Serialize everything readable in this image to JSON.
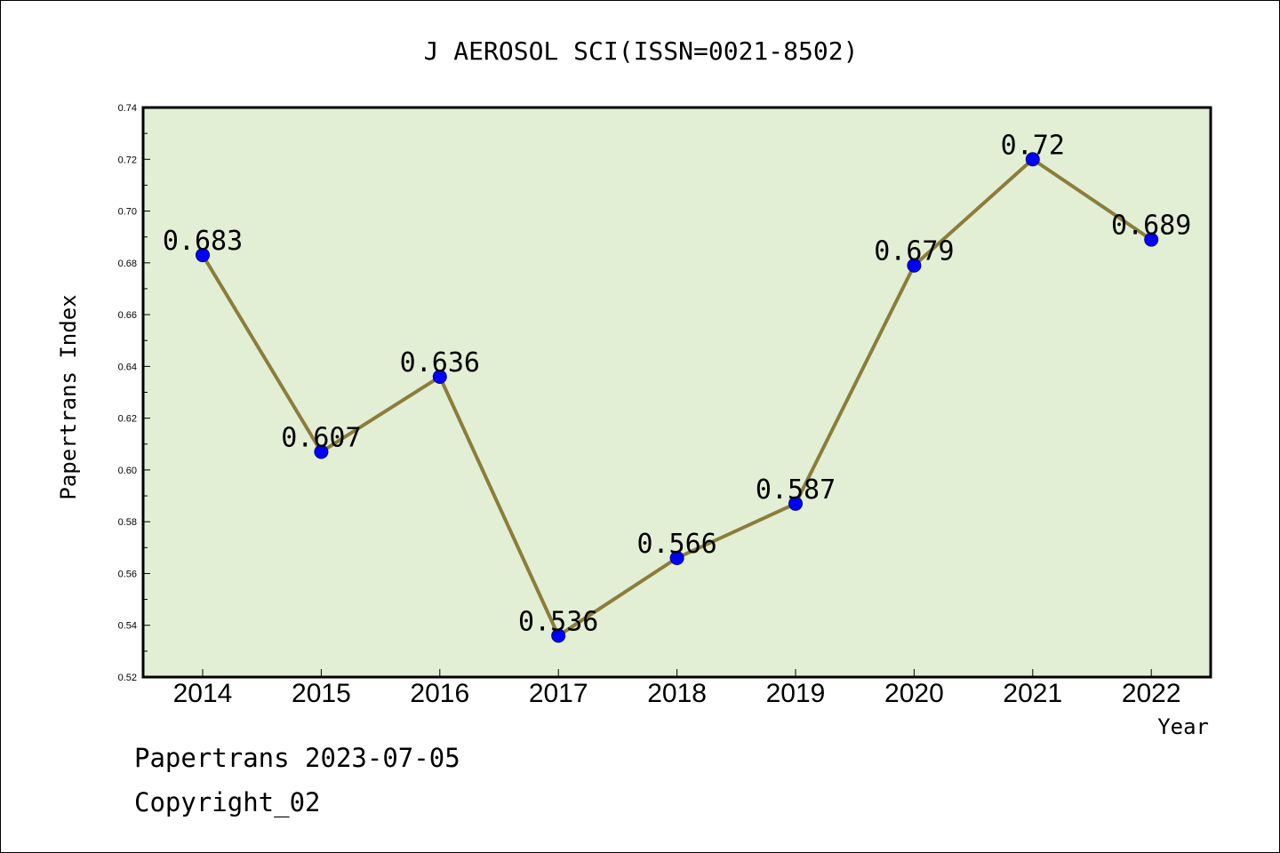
{
  "colors": {
    "plot_background": "#e2efd5",
    "line": "#8b7d3a",
    "marker": "#0000ff"
  },
  "chart_data": {
    "type": "line",
    "title": "J AEROSOL SCI(ISSN=0021-8502)",
    "xlabel": "Year",
    "ylabel": "Papertrans Index",
    "categories": [
      "2014",
      "2015",
      "2016",
      "2017",
      "2018",
      "2019",
      "2020",
      "2021",
      "2022"
    ],
    "values": [
      0.683,
      0.607,
      0.636,
      0.536,
      0.566,
      0.587,
      0.679,
      0.72,
      0.689
    ],
    "data_labels": [
      "0.683",
      "0.607",
      "0.636",
      "0.536",
      "0.566",
      "0.587",
      "0.679",
      "0.72",
      "0.689"
    ],
    "ylim": [
      0.52,
      0.74
    ],
    "yticks": [
      "0.52",
      "0.54",
      "0.56",
      "0.58",
      "0.60",
      "0.62",
      "0.64",
      "0.66",
      "0.68",
      "0.70",
      "0.72",
      "0.74"
    ],
    "grid": false,
    "legend": "none"
  },
  "footer": {
    "date_line": "Papertrans 2023-07-05",
    "copyright_line": "Copyright_02"
  }
}
